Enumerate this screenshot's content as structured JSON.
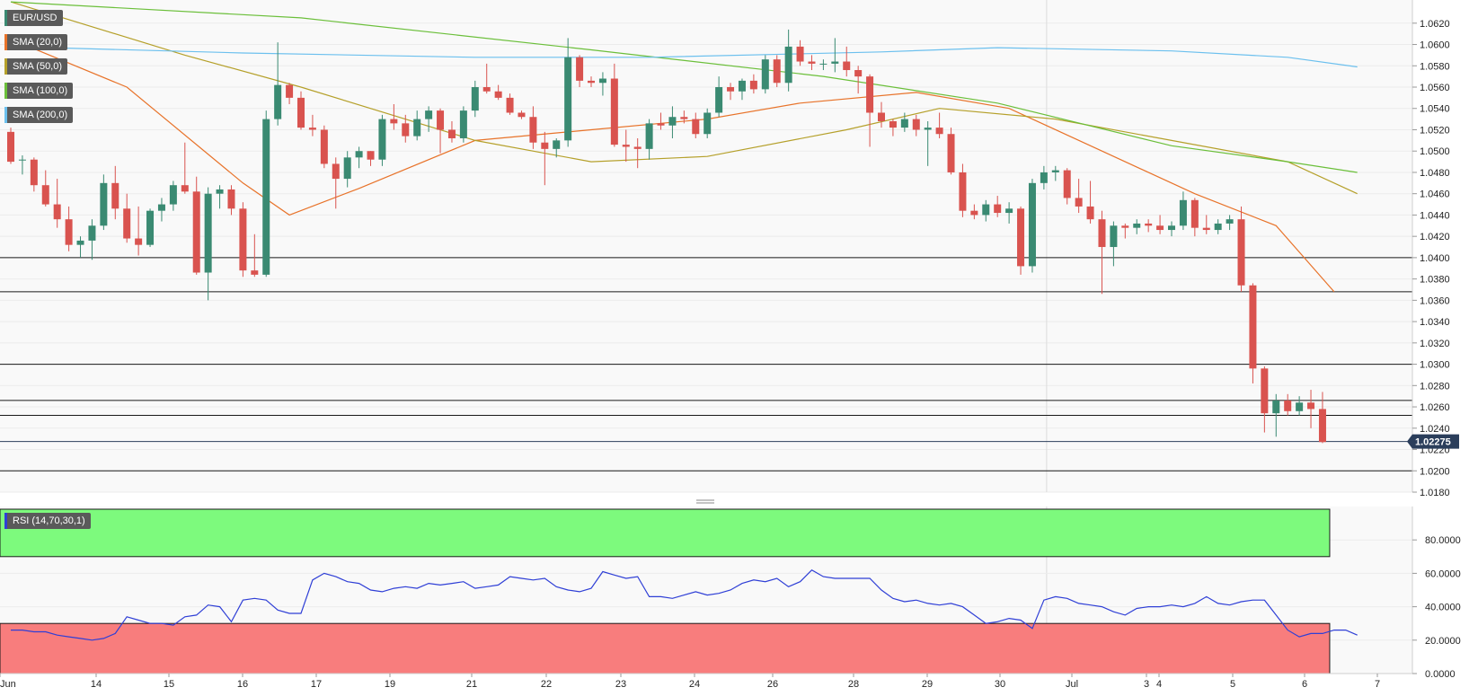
{
  "symbol": "EUR/USD",
  "colors": {
    "up": "#3a8a72",
    "down": "#d9534f",
    "sma20": "#e8732a",
    "sma50": "#b5a02a",
    "sma100": "#6bbf3a",
    "sma200": "#6cc0ee",
    "rsi": "#2f3fd6",
    "overbought": "#7dfa7d",
    "oversold": "#f87d7d",
    "price_tag": "#2b3e5b"
  },
  "indicators": [
    {
      "label": "SMA (20,0)",
      "color_key": "sma20"
    },
    {
      "label": "SMA (50,0)",
      "color_key": "sma50"
    },
    {
      "label": "SMA (100,0)",
      "color_key": "sma100"
    },
    {
      "label": "SMA (200,0)",
      "color_key": "sma200"
    }
  ],
  "rsi_label": "RSI (14,70,30,1)",
  "current_price": "1.02275",
  "chart_data": [
    {
      "type": "candlestick",
      "title": "EUR/USD",
      "x_labels": [
        "Jun",
        "14",
        "15",
        "16",
        "17",
        "19",
        "21",
        "22",
        "23",
        "24",
        "26",
        "28",
        "29",
        "30",
        "Jul",
        "3",
        "4",
        "5",
        "6",
        "7"
      ],
      "y_ticks": [
        "1.0620",
        "1.0600",
        "1.0580",
        "1.0560",
        "1.0540",
        "1.0520",
        "1.0500",
        "1.0480",
        "1.0460",
        "1.0440",
        "1.0420",
        "1.0400",
        "1.0380",
        "1.0360",
        "1.0340",
        "1.0320",
        "1.0300",
        "1.0280",
        "1.0260",
        "1.0240",
        "1.0220",
        "1.0200",
        "1.0180"
      ],
      "ylim": [
        1.018,
        1.0635
      ],
      "horizontal_levels": [
        1.04,
        1.0368,
        1.03,
        1.0266,
        1.0252,
        1.02
      ],
      "current_price": 1.02275,
      "candles": [
        {
          "o": 1.0518,
          "h": 1.0522,
          "l": 1.0488,
          "c": 1.049
        },
        {
          "o": 1.0492,
          "h": 1.0496,
          "l": 1.0478,
          "c": 1.0492
        },
        {
          "o": 1.0492,
          "h": 1.0494,
          "l": 1.0462,
          "c": 1.0468
        },
        {
          "o": 1.0468,
          "h": 1.0482,
          "l": 1.0448,
          "c": 1.045
        },
        {
          "o": 1.045,
          "h": 1.0474,
          "l": 1.0428,
          "c": 1.0436
        },
        {
          "o": 1.0436,
          "h": 1.0448,
          "l": 1.0406,
          "c": 1.0412
        },
        {
          "o": 1.0412,
          "h": 1.042,
          "l": 1.04,
          "c": 1.0416
        },
        {
          "o": 1.0416,
          "h": 1.0436,
          "l": 1.0398,
          "c": 1.043
        },
        {
          "o": 1.043,
          "h": 1.0478,
          "l": 1.0426,
          "c": 1.047
        },
        {
          "o": 1.047,
          "h": 1.0486,
          "l": 1.0436,
          "c": 1.0446
        },
        {
          "o": 1.0446,
          "h": 1.046,
          "l": 1.0414,
          "c": 1.0418
        },
        {
          "o": 1.0418,
          "h": 1.0448,
          "l": 1.0402,
          "c": 1.0412
        },
        {
          "o": 1.0412,
          "h": 1.0446,
          "l": 1.041,
          "c": 1.0444
        },
        {
          "o": 1.0444,
          "h": 1.0456,
          "l": 1.0434,
          "c": 1.045
        },
        {
          "o": 1.045,
          "h": 1.0472,
          "l": 1.0444,
          "c": 1.0468
        },
        {
          "o": 1.0468,
          "h": 1.0508,
          "l": 1.046,
          "c": 1.0462
        },
        {
          "o": 1.0462,
          "h": 1.0476,
          "l": 1.0384,
          "c": 1.0386
        },
        {
          "o": 1.0386,
          "h": 1.0466,
          "l": 1.036,
          "c": 1.046
        },
        {
          "o": 1.046,
          "h": 1.0468,
          "l": 1.0446,
          "c": 1.0464
        },
        {
          "o": 1.0464,
          "h": 1.0468,
          "l": 1.044,
          "c": 1.0446
        },
        {
          "o": 1.0446,
          "h": 1.0452,
          "l": 1.0382,
          "c": 1.0388
        },
        {
          "o": 1.0388,
          "h": 1.0422,
          "l": 1.0382,
          "c": 1.0384
        },
        {
          "o": 1.0384,
          "h": 1.0538,
          "l": 1.0382,
          "c": 1.053
        },
        {
          "o": 1.053,
          "h": 1.0602,
          "l": 1.0524,
          "c": 1.0562
        },
        {
          "o": 1.0562,
          "h": 1.0564,
          "l": 1.0544,
          "c": 1.055
        },
        {
          "o": 1.055,
          "h": 1.0556,
          "l": 1.052,
          "c": 1.0522
        },
        {
          "o": 1.0522,
          "h": 1.0534,
          "l": 1.0514,
          "c": 1.052
        },
        {
          "o": 1.052,
          "h": 1.0524,
          "l": 1.0484,
          "c": 1.0488
        },
        {
          "o": 1.0488,
          "h": 1.0494,
          "l": 1.0446,
          "c": 1.0474
        },
        {
          "o": 1.0474,
          "h": 1.05,
          "l": 1.0466,
          "c": 1.0494
        },
        {
          "o": 1.0494,
          "h": 1.0504,
          "l": 1.0484,
          "c": 1.05
        },
        {
          "o": 1.05,
          "h": 1.05,
          "l": 1.0486,
          "c": 1.0492
        },
        {
          "o": 1.0492,
          "h": 1.0534,
          "l": 1.0486,
          "c": 1.053
        },
        {
          "o": 1.053,
          "h": 1.0544,
          "l": 1.052,
          "c": 1.0526
        },
        {
          "o": 1.0526,
          "h": 1.0534,
          "l": 1.0508,
          "c": 1.0514
        },
        {
          "o": 1.0514,
          "h": 1.0538,
          "l": 1.051,
          "c": 1.053
        },
        {
          "o": 1.053,
          "h": 1.0542,
          "l": 1.0518,
          "c": 1.0538
        },
        {
          "o": 1.0538,
          "h": 1.054,
          "l": 1.0498,
          "c": 1.052
        },
        {
          "o": 1.052,
          "h": 1.0528,
          "l": 1.0508,
          "c": 1.0512
        },
        {
          "o": 1.0512,
          "h": 1.0542,
          "l": 1.0508,
          "c": 1.0538
        },
        {
          "o": 1.0538,
          "h": 1.0566,
          "l": 1.0532,
          "c": 1.056
        },
        {
          "o": 1.056,
          "h": 1.0582,
          "l": 1.0554,
          "c": 1.0556
        },
        {
          "o": 1.0556,
          "h": 1.0562,
          "l": 1.0548,
          "c": 1.055
        },
        {
          "o": 1.055,
          "h": 1.0554,
          "l": 1.0534,
          "c": 1.0536
        },
        {
          "o": 1.0536,
          "h": 1.0538,
          "l": 1.053,
          "c": 1.0532
        },
        {
          "o": 1.0532,
          "h": 1.0542,
          "l": 1.0502,
          "c": 1.0508
        },
        {
          "o": 1.0508,
          "h": 1.0518,
          "l": 1.0468,
          "c": 1.0502
        },
        {
          "o": 1.0502,
          "h": 1.0512,
          "l": 1.0494,
          "c": 1.051
        },
        {
          "o": 1.051,
          "h": 1.0606,
          "l": 1.0504,
          "c": 1.0588
        },
        {
          "o": 1.0588,
          "h": 1.059,
          "l": 1.056,
          "c": 1.0566
        },
        {
          "o": 1.0566,
          "h": 1.057,
          "l": 1.056,
          "c": 1.0564
        },
        {
          "o": 1.0564,
          "h": 1.0574,
          "l": 1.0552,
          "c": 1.0568
        },
        {
          "o": 1.0568,
          "h": 1.0582,
          "l": 1.0504,
          "c": 1.0506
        },
        {
          "o": 1.0506,
          "h": 1.052,
          "l": 1.049,
          "c": 1.0504
        },
        {
          "o": 1.0504,
          "h": 1.0512,
          "l": 1.0484,
          "c": 1.0502
        },
        {
          "o": 1.0502,
          "h": 1.053,
          "l": 1.0492,
          "c": 1.0526
        },
        {
          "o": 1.0526,
          "h": 1.0536,
          "l": 1.052,
          "c": 1.0524
        },
        {
          "o": 1.0524,
          "h": 1.0542,
          "l": 1.0512,
          "c": 1.0532
        },
        {
          "o": 1.0532,
          "h": 1.0538,
          "l": 1.0526,
          "c": 1.053
        },
        {
          "o": 1.053,
          "h": 1.0536,
          "l": 1.0512,
          "c": 1.0516
        },
        {
          "o": 1.0516,
          "h": 1.054,
          "l": 1.0512,
          "c": 1.0536
        },
        {
          "o": 1.0536,
          "h": 1.057,
          "l": 1.0532,
          "c": 1.056
        },
        {
          "o": 1.056,
          "h": 1.0564,
          "l": 1.0548,
          "c": 1.0556
        },
        {
          "o": 1.0556,
          "h": 1.0568,
          "l": 1.0548,
          "c": 1.0566
        },
        {
          "o": 1.0566,
          "h": 1.0572,
          "l": 1.0554,
          "c": 1.0558
        },
        {
          "o": 1.0558,
          "h": 1.059,
          "l": 1.0554,
          "c": 1.0586
        },
        {
          "o": 1.0586,
          "h": 1.059,
          "l": 1.056,
          "c": 1.0564
        },
        {
          "o": 1.0564,
          "h": 1.0614,
          "l": 1.0556,
          "c": 1.0598
        },
        {
          "o": 1.0598,
          "h": 1.0604,
          "l": 1.058,
          "c": 1.0584
        },
        {
          "o": 1.0584,
          "h": 1.059,
          "l": 1.0576,
          "c": 1.0582
        },
        {
          "o": 1.0582,
          "h": 1.0586,
          "l": 1.0576,
          "c": 1.0582
        },
        {
          "o": 1.0582,
          "h": 1.0606,
          "l": 1.0574,
          "c": 1.0584
        },
        {
          "o": 1.0584,
          "h": 1.0598,
          "l": 1.057,
          "c": 1.0576
        },
        {
          "o": 1.0576,
          "h": 1.058,
          "l": 1.0554,
          "c": 1.057
        },
        {
          "o": 1.057,
          "h": 1.0572,
          "l": 1.0504,
          "c": 1.0536
        },
        {
          "o": 1.0536,
          "h": 1.0546,
          "l": 1.0522,
          "c": 1.0528
        },
        {
          "o": 1.0528,
          "h": 1.053,
          "l": 1.0514,
          "c": 1.0522
        },
        {
          "o": 1.0522,
          "h": 1.0536,
          "l": 1.0518,
          "c": 1.053
        },
        {
          "o": 1.053,
          "h": 1.0534,
          "l": 1.0514,
          "c": 1.052
        },
        {
          "o": 1.052,
          "h": 1.0528,
          "l": 1.0486,
          "c": 1.0522
        },
        {
          "o": 1.0522,
          "h": 1.0536,
          "l": 1.0512,
          "c": 1.0516
        },
        {
          "o": 1.0516,
          "h": 1.0522,
          "l": 1.0478,
          "c": 1.048
        },
        {
          "o": 1.048,
          "h": 1.0488,
          "l": 1.0438,
          "c": 1.0444
        },
        {
          "o": 1.0444,
          "h": 1.045,
          "l": 1.0436,
          "c": 1.044
        },
        {
          "o": 1.044,
          "h": 1.0454,
          "l": 1.0434,
          "c": 1.045
        },
        {
          "o": 1.045,
          "h": 1.0458,
          "l": 1.0438,
          "c": 1.0442
        },
        {
          "o": 1.0442,
          "h": 1.0452,
          "l": 1.0432,
          "c": 1.0446
        },
        {
          "o": 1.0446,
          "h": 1.0448,
          "l": 1.0384,
          "c": 1.0392
        },
        {
          "o": 1.0392,
          "h": 1.0474,
          "l": 1.0386,
          "c": 1.047
        },
        {
          "o": 1.047,
          "h": 1.0486,
          "l": 1.0464,
          "c": 1.048
        },
        {
          "o": 1.048,
          "h": 1.0486,
          "l": 1.0472,
          "c": 1.0482
        },
        {
          "o": 1.0482,
          "h": 1.0484,
          "l": 1.045,
          "c": 1.0456
        },
        {
          "o": 1.0456,
          "h": 1.0474,
          "l": 1.0442,
          "c": 1.0448
        },
        {
          "o": 1.0448,
          "h": 1.0472,
          "l": 1.0432,
          "c": 1.0436
        },
        {
          "o": 1.0436,
          "h": 1.0444,
          "l": 1.0366,
          "c": 1.041
        },
        {
          "o": 1.041,
          "h": 1.0434,
          "l": 1.0392,
          "c": 1.043
        },
        {
          "o": 1.043,
          "h": 1.0432,
          "l": 1.0418,
          "c": 1.0428
        },
        {
          "o": 1.0428,
          "h": 1.0436,
          "l": 1.0422,
          "c": 1.0432
        },
        {
          "o": 1.0432,
          "h": 1.0436,
          "l": 1.0424,
          "c": 1.043
        },
        {
          "o": 1.043,
          "h": 1.044,
          "l": 1.0422,
          "c": 1.0426
        },
        {
          "o": 1.0426,
          "h": 1.0434,
          "l": 1.042,
          "c": 1.043
        },
        {
          "o": 1.043,
          "h": 1.0462,
          "l": 1.0426,
          "c": 1.0454
        },
        {
          "o": 1.0454,
          "h": 1.0456,
          "l": 1.042,
          "c": 1.0428
        },
        {
          "o": 1.0428,
          "h": 1.044,
          "l": 1.0422,
          "c": 1.0426
        },
        {
          "o": 1.0426,
          "h": 1.0436,
          "l": 1.0422,
          "c": 1.0432
        },
        {
          "o": 1.0432,
          "h": 1.044,
          "l": 1.0426,
          "c": 1.0436
        },
        {
          "o": 1.0436,
          "h": 1.0448,
          "l": 1.0368,
          "c": 1.0374
        },
        {
          "o": 1.0374,
          "h": 1.0376,
          "l": 1.0282,
          "c": 1.0296
        },
        {
          "o": 1.0296,
          "h": 1.0298,
          "l": 1.0236,
          "c": 1.0254
        },
        {
          "o": 1.0254,
          "h": 1.0272,
          "l": 1.0232,
          "c": 1.0266
        },
        {
          "o": 1.0266,
          "h": 1.0272,
          "l": 1.0252,
          "c": 1.0256
        },
        {
          "o": 1.0256,
          "h": 1.027,
          "l": 1.0252,
          "c": 1.0264
        },
        {
          "o": 1.0264,
          "h": 1.0276,
          "l": 1.024,
          "c": 1.0258
        },
        {
          "o": 1.0258,
          "h": 1.0274,
          "l": 1.0226,
          "c": 1.0227
        }
      ],
      "sma": [
        {
          "key": "sma20",
          "points": [
            [
              0,
              1.0605
            ],
            [
              10,
              1.056
            ],
            [
              20,
              1.047
            ],
            [
              24,
              1.044
            ],
            [
              30,
              1.0465
            ],
            [
              40,
              1.051
            ],
            [
              50,
              1.052
            ],
            [
              60,
              1.053
            ],
            [
              68,
              1.0545
            ],
            [
              78,
              1.0555
            ],
            [
              86,
              1.054
            ],
            [
              94,
              1.05
            ],
            [
              102,
              1.046
            ],
            [
              109,
              1.043
            ],
            [
              114,
              1.0368
            ]
          ]
        },
        {
          "key": "sma50",
          "points": [
            [
              0,
              1.064
            ],
            [
              15,
              1.059
            ],
            [
              25,
              1.056
            ],
            [
              40,
              1.051
            ],
            [
              50,
              1.049
            ],
            [
              60,
              1.0495
            ],
            [
              72,
              1.052
            ],
            [
              80,
              1.054
            ],
            [
              90,
              1.053
            ],
            [
              100,
              1.051
            ],
            [
              110,
              1.049
            ],
            [
              116,
              1.046
            ]
          ]
        },
        {
          "key": "sma100",
          "points": [
            [
              0,
              1.064
            ],
            [
              25,
              1.0625
            ],
            [
              50,
              1.0595
            ],
            [
              70,
              1.057
            ],
            [
              85,
              1.0545
            ],
            [
              100,
              1.0505
            ],
            [
              110,
              1.049
            ],
            [
              116,
              1.048
            ]
          ]
        },
        {
          "key": "sma200",
          "points": [
            [
              0,
              1.0598
            ],
            [
              20,
              1.0592
            ],
            [
              40,
              1.0588
            ],
            [
              55,
              1.0588
            ],
            [
              75,
              1.0593
            ],
            [
              85,
              1.0597
            ],
            [
              100,
              1.0594
            ],
            [
              110,
              1.0588
            ],
            [
              116,
              1.0579
            ]
          ]
        }
      ]
    },
    {
      "type": "line",
      "title": "RSI (14,70,30,1)",
      "y_ticks": [
        "80.0000",
        "60.0000",
        "40.0000",
        "20.0000",
        "0.0000"
      ],
      "ylim": [
        0,
        100
      ],
      "overbought": 70,
      "oversold": 30,
      "values": [
        26,
        26,
        25,
        25,
        23,
        22,
        21,
        20,
        21,
        24,
        34,
        32,
        30,
        30,
        29,
        34,
        35,
        41,
        40,
        31,
        44,
        45,
        44,
        38,
        36,
        36,
        56,
        60,
        58,
        55,
        54,
        50,
        49,
        51,
        52,
        51,
        54,
        53,
        54,
        55,
        51,
        52,
        53,
        58,
        57,
        56,
        57,
        52,
        50,
        49,
        51,
        61,
        59,
        57,
        58,
        46,
        46,
        45,
        47,
        49,
        47,
        48,
        50,
        54,
        56,
        55,
        57,
        52,
        55,
        62,
        58,
        57,
        57,
        57,
        57,
        50,
        45,
        43,
        44,
        42,
        41,
        42,
        40,
        35,
        30,
        31,
        33,
        32,
        27,
        44,
        46,
        45,
        42,
        41,
        40,
        37,
        35,
        39,
        40,
        40,
        41,
        40,
        42,
        46,
        42,
        41,
        43,
        44,
        44,
        35,
        26,
        22,
        24,
        24,
        26,
        26,
        23
      ]
    }
  ]
}
